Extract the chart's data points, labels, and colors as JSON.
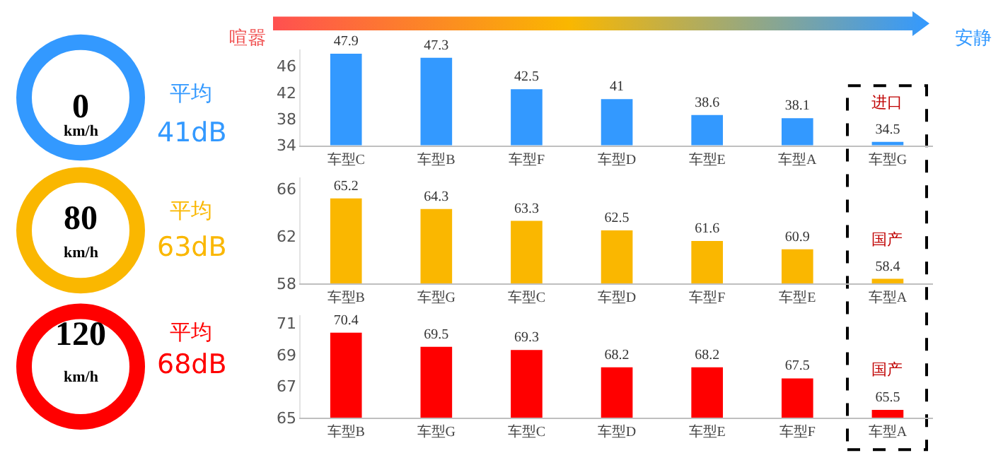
{
  "chart_data": [
    {
      "type": "bar",
      "categories": [
        "车型C",
        "车型B",
        "车型F",
        "车型D",
        "车型E",
        "车型A",
        "车型G"
      ],
      "color": "#3399ff",
      "values": [
        47.9,
        47.3,
        42.5,
        41,
        38.6,
        38.1,
        34.5
      ],
      "ylim": [
        34,
        48.5
      ],
      "yticks": [
        34,
        38,
        42,
        46
      ],
      "data_labels": true,
      "grid": false,
      "annotations": [
        "0",
        "km/h",
        "平均",
        "41dB",
        "进口",
        "喧嚣",
        "安静"
      ]
    },
    {
      "type": "bar",
      "categories": [
        "车型B",
        "车型G",
        "车型C",
        "车型D",
        "车型F",
        "车型E",
        "车型A"
      ],
      "color": "#fab700",
      "values": [
        65.2,
        64.3,
        63.3,
        62.5,
        61.6,
        60.9,
        58.4
      ],
      "ylim": [
        58,
        67
      ],
      "yticks": [
        58,
        62,
        66
      ],
      "data_labels": true,
      "grid": false,
      "annotations": [
        "80",
        "km/h",
        "平均",
        "63dB",
        "国产"
      ]
    },
    {
      "type": "bar",
      "categories": [
        "车型B",
        "车型G",
        "车型C",
        "车型D",
        "车型E",
        "车型F",
        "车型A"
      ],
      "color": "#ff0000",
      "values": [
        70.4,
        69.5,
        69.3,
        68.2,
        68.2,
        67.5,
        65.5
      ],
      "ylim": [
        65,
        71.5
      ],
      "yticks": [
        65,
        67,
        69,
        71
      ],
      "data_labels": true,
      "grid": false,
      "annotations": [
        "120",
        "km/h",
        "平均",
        "68dB",
        "国产"
      ]
    }
  ]
}
